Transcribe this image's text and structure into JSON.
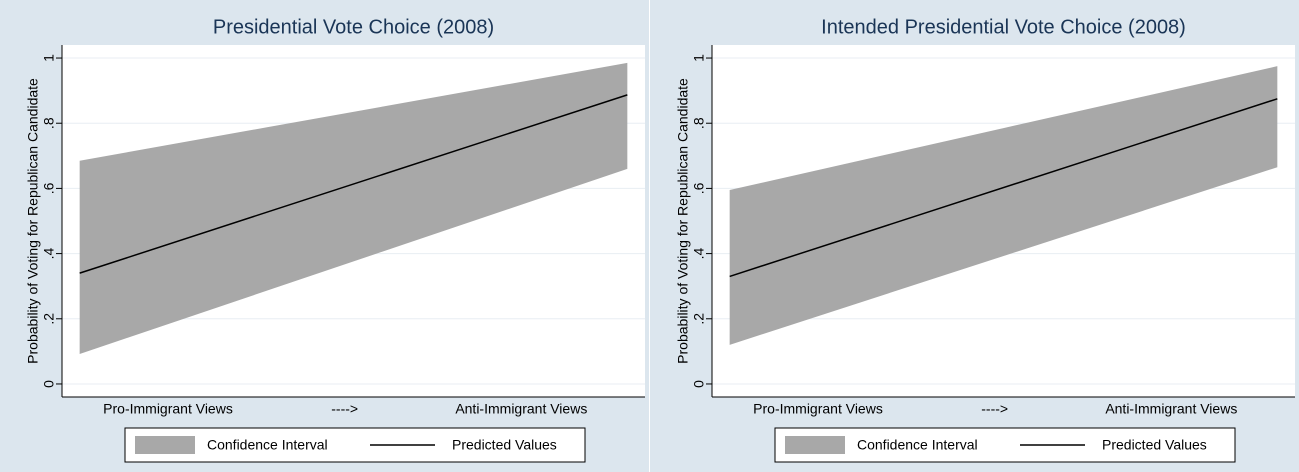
{
  "chart_data": [
    {
      "type": "line",
      "title": "Presidential Vote Choice (2008)",
      "y_label": "Probability of Voting for Republican Candidate",
      "x": [
        0.5,
        3.6
      ],
      "xlim": [
        0.4,
        3.7
      ],
      "xticks": [
        {
          "value": 1,
          "label": "Pro-Immigrant Views"
        },
        {
          "value": 2,
          "label": "---->"
        },
        {
          "value": 3,
          "label": "Anti-Immigrant Views"
        }
      ],
      "ylim": [
        -0.04,
        1.04
      ],
      "yticks": [
        0,
        {
          "value": 0.2,
          "label": ".2"
        },
        {
          "value": 0.4,
          "label": ".4"
        },
        {
          "value": 0.6,
          "label": ".6"
        },
        {
          "value": 0.8,
          "label": ".8"
        },
        1
      ],
      "grid": true,
      "series": [
        {
          "name": "Confidence Interval",
          "color": "#a8a8a8",
          "lower": [
            0.092,
            0.66
          ],
          "upper": [
            0.685,
            0.985
          ]
        },
        {
          "name": "Predicted Values",
          "color": "#000000",
          "values": [
            0.34,
            0.887
          ]
        }
      ]
    },
    {
      "type": "line",
      "title": "Intended Presidential Vote Choice (2008)",
      "y_label": "Probability of Voting for Republican Candidate",
      "x": [
        0.5,
        3.6
      ],
      "xlim": [
        0.4,
        3.7
      ],
      "xticks": [
        {
          "value": 1,
          "label": "Pro-Immigrant Views"
        },
        {
          "value": 2,
          "label": "---->"
        },
        {
          "value": 3,
          "label": "Anti-Immigrant Views"
        }
      ],
      "ylim": [
        -0.04,
        1.04
      ],
      "yticks": [
        0,
        {
          "value": 0.2,
          "label": ".2"
        },
        {
          "value": 0.4,
          "label": ".4"
        },
        {
          "value": 0.6,
          "label": ".6"
        },
        {
          "value": 0.8,
          "label": ".8"
        },
        1
      ],
      "grid": true,
      "series": [
        {
          "name": "Confidence Interval",
          "color": "#a8a8a8",
          "lower": [
            0.12,
            0.665
          ],
          "upper": [
            0.595,
            0.975
          ]
        },
        {
          "name": "Predicted Values",
          "color": "#000000",
          "values": [
            0.33,
            0.875
          ]
        }
      ]
    }
  ]
}
